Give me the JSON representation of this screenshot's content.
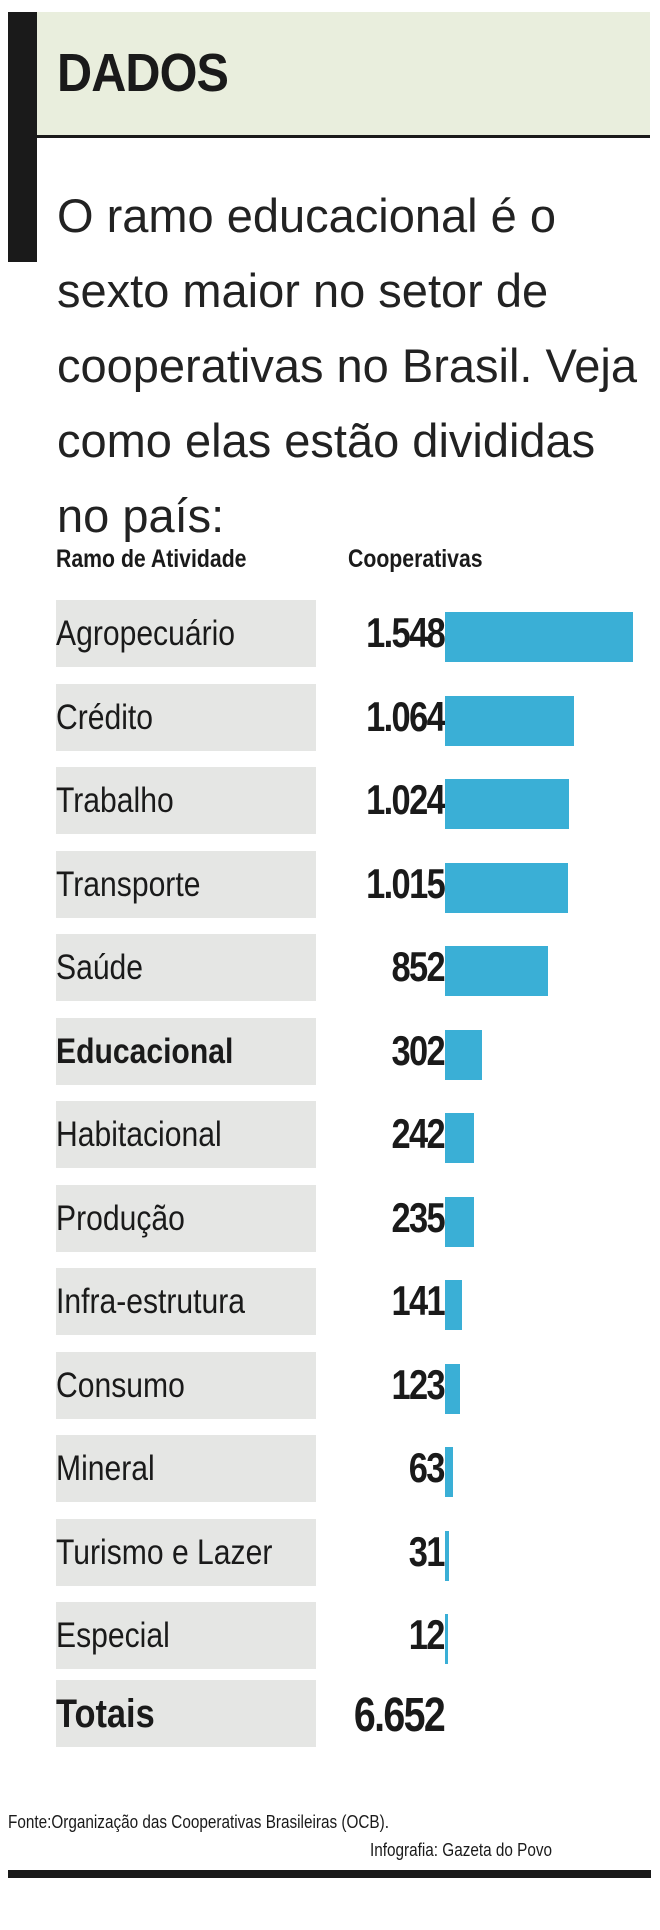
{
  "header": {
    "title": "DADOS"
  },
  "intro": "O ramo educacional é o sexto maior no setor de cooperativas no Brasil. Veja como elas estão divididas no país:",
  "colors": {
    "bar": "#3aafd6",
    "header_bg": "#e9eedd",
    "row_bg": "#e5e6e4"
  },
  "chart_data": {
    "type": "bar",
    "orientation": "horizontal",
    "column_headers": [
      "Ramo de Atividade",
      "Cooperativas"
    ],
    "categories": [
      "Agropecuário",
      "Crédito",
      "Trabalho",
      "Transporte",
      "Saúde",
      "Educacional",
      "Habitacional",
      "Produção",
      "Infra-estrutura",
      "Consumo",
      "Mineral",
      "Turismo e Lazer",
      "Especial"
    ],
    "labels": [
      "1.548",
      "1.064",
      "1.024",
      "1.015",
      "852",
      "302",
      "242",
      "235",
      "141",
      "123",
      "63",
      "31",
      "12"
    ],
    "values": [
      1548,
      1064,
      1024,
      1015,
      852,
      302,
      242,
      235,
      141,
      123,
      63,
      31,
      12
    ],
    "highlight": "Educacional",
    "total_label": "Totais",
    "total_value": "6.652"
  },
  "footer": {
    "source": "Fonte:Organização das Cooperativas Brasileiras (OCB).",
    "credit": "Infografia: Gazeta do Povo"
  }
}
